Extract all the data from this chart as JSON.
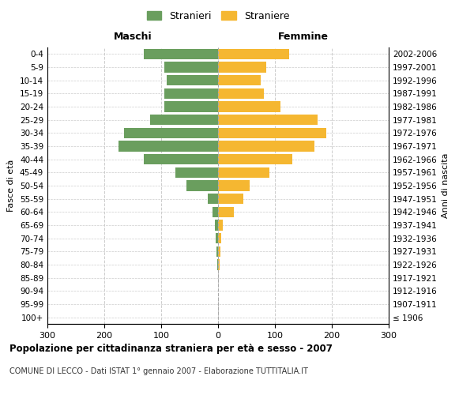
{
  "age_groups": [
    "100+",
    "95-99",
    "90-94",
    "85-89",
    "80-84",
    "75-79",
    "70-74",
    "65-69",
    "60-64",
    "55-59",
    "50-54",
    "45-49",
    "40-44",
    "35-39",
    "30-34",
    "25-29",
    "20-24",
    "15-19",
    "10-14",
    "5-9",
    "0-4"
  ],
  "birth_years": [
    "≤ 1906",
    "1907-1911",
    "1912-1916",
    "1917-1921",
    "1922-1926",
    "1927-1931",
    "1932-1936",
    "1937-1941",
    "1942-1946",
    "1947-1951",
    "1952-1956",
    "1957-1961",
    "1962-1966",
    "1967-1971",
    "1972-1976",
    "1977-1981",
    "1982-1986",
    "1987-1991",
    "1992-1996",
    "1997-2001",
    "2002-2006"
  ],
  "maschi": [
    0,
    0,
    0,
    0,
    2,
    3,
    4,
    5,
    10,
    18,
    55,
    75,
    130,
    175,
    165,
    120,
    95,
    95,
    90,
    95,
    130
  ],
  "femmine": [
    0,
    0,
    0,
    0,
    3,
    4,
    5,
    8,
    28,
    45,
    55,
    90,
    130,
    170,
    190,
    175,
    110,
    80,
    75,
    85,
    125
  ],
  "maschi_color": "#6a9e5e",
  "femmine_color": "#f5b731",
  "background_color": "#ffffff",
  "grid_color": "#cccccc",
  "title": "Popolazione per cittadinanza straniera per età e sesso - 2007",
  "subtitle": "COMUNE DI LECCO - Dati ISTAT 1° gennaio 2007 - Elaborazione TUTTITALIA.IT",
  "left_label": "Maschi",
  "right_label": "Femmine",
  "left_axis_label": "Fasce di età",
  "right_axis_label": "Anni di nascita",
  "legend_maschi": "Stranieri",
  "legend_femmine": "Straniere",
  "xlim": 300,
  "bar_height": 0.8
}
